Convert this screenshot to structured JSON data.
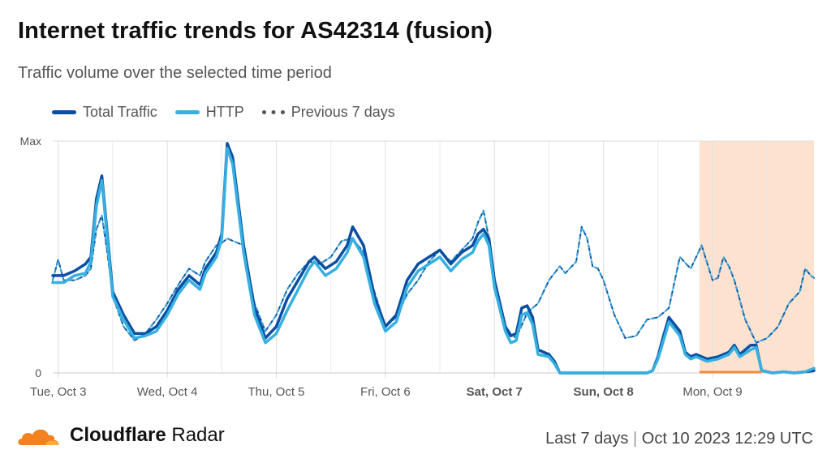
{
  "title": "Internet traffic trends for AS42314 (fusion)",
  "subtitle": "Traffic volume over the selected time period",
  "legend": {
    "total": "Total Traffic",
    "http": "HTTP",
    "previous": "Previous 7 days"
  },
  "colors": {
    "total": "#0b4ea2",
    "http": "#36b0e0",
    "previous": "#555555",
    "highlight": "#fde3cf",
    "highlight_line": "#f08a3c"
  },
  "brand": {
    "bold": "Cloudflare",
    "regular": "Radar",
    "icon": "cloud-icon"
  },
  "footer": {
    "period": "Last 7 days",
    "timestamp": "Oct 10 2023 12:29 UTC"
  },
  "chart_data": {
    "type": "line",
    "title": "Internet traffic trends for AS42314 (fusion)",
    "x_tick_labels": [
      "Tue, Oct 3",
      "Wed, Oct 4",
      "Thu, Oct 5",
      "Fri, Oct 6",
      "Sat, Oct 7",
      "Sun, Oct 8",
      "Mon, Oct 9"
    ],
    "bold_ticks": [
      "Sat, Oct 7",
      "Sun, Oct 8"
    ],
    "y_tick_labels": [
      "0",
      "Max"
    ],
    "ylim": [
      0,
      1
    ],
    "x_unit": "days since Tue, Oct 3 00:00 UTC",
    "xlim": [
      -0.05,
      6.93
    ],
    "highlight_range": [
      5.88,
      6.93
    ],
    "grid": true,
    "legend_position": "top-left",
    "series": [
      {
        "name": "Total Traffic",
        "style": "solid",
        "points": [
          [
            -0.05,
            0.42
          ],
          [
            0.05,
            0.42
          ],
          [
            0.15,
            0.44
          ],
          [
            0.25,
            0.47
          ],
          [
            0.3,
            0.5
          ],
          [
            0.35,
            0.75
          ],
          [
            0.4,
            0.85
          ],
          [
            0.45,
            0.6
          ],
          [
            0.5,
            0.35
          ],
          [
            0.6,
            0.25
          ],
          [
            0.7,
            0.17
          ],
          [
            0.8,
            0.17
          ],
          [
            0.9,
            0.2
          ],
          [
            1.0,
            0.27
          ],
          [
            1.1,
            0.36
          ],
          [
            1.2,
            0.42
          ],
          [
            1.3,
            0.38
          ],
          [
            1.35,
            0.45
          ],
          [
            1.45,
            0.52
          ],
          [
            1.5,
            0.6
          ],
          [
            1.55,
            0.99
          ],
          [
            1.6,
            0.93
          ],
          [
            1.7,
            0.55
          ],
          [
            1.8,
            0.28
          ],
          [
            1.9,
            0.15
          ],
          [
            2.0,
            0.2
          ],
          [
            2.1,
            0.32
          ],
          [
            2.2,
            0.4
          ],
          [
            2.3,
            0.48
          ],
          [
            2.35,
            0.5
          ],
          [
            2.45,
            0.45
          ],
          [
            2.55,
            0.48
          ],
          [
            2.65,
            0.55
          ],
          [
            2.7,
            0.63
          ],
          [
            2.8,
            0.55
          ],
          [
            2.9,
            0.33
          ],
          [
            3.0,
            0.2
          ],
          [
            3.1,
            0.25
          ],
          [
            3.2,
            0.4
          ],
          [
            3.3,
            0.47
          ],
          [
            3.4,
            0.5
          ],
          [
            3.5,
            0.53
          ],
          [
            3.6,
            0.47
          ],
          [
            3.7,
            0.52
          ],
          [
            3.8,
            0.55
          ],
          [
            3.85,
            0.6
          ],
          [
            3.9,
            0.62
          ],
          [
            3.95,
            0.58
          ],
          [
            4.0,
            0.4
          ],
          [
            4.1,
            0.2
          ],
          [
            4.15,
            0.16
          ],
          [
            4.2,
            0.17
          ],
          [
            4.25,
            0.28
          ],
          [
            4.3,
            0.29
          ],
          [
            4.35,
            0.24
          ],
          [
            4.4,
            0.1
          ],
          [
            4.5,
            0.08
          ],
          [
            4.55,
            0.05
          ],
          [
            4.6,
            0.0
          ],
          [
            4.8,
            0.0
          ],
          [
            5.0,
            0.0
          ],
          [
            5.2,
            0.0
          ],
          [
            5.4,
            0.0
          ],
          [
            5.45,
            0.01
          ],
          [
            5.5,
            0.07
          ],
          [
            5.55,
            0.16
          ],
          [
            5.6,
            0.24
          ],
          [
            5.7,
            0.18
          ],
          [
            5.75,
            0.09
          ],
          [
            5.8,
            0.07
          ],
          [
            5.85,
            0.08
          ],
          [
            5.95,
            0.06
          ],
          [
            6.05,
            0.07
          ],
          [
            6.15,
            0.09
          ],
          [
            6.2,
            0.12
          ],
          [
            6.25,
            0.08
          ],
          [
            6.35,
            0.12
          ],
          [
            6.4,
            0.12
          ],
          [
            6.45,
            0.01
          ],
          [
            6.55,
            0.0
          ],
          [
            6.65,
            0.005
          ],
          [
            6.75,
            0.0
          ],
          [
            6.85,
            0.005
          ],
          [
            6.93,
            0.01
          ]
        ]
      },
      {
        "name": "HTTP",
        "style": "solid",
        "points": [
          [
            -0.05,
            0.39
          ],
          [
            0.05,
            0.39
          ],
          [
            0.15,
            0.42
          ],
          [
            0.25,
            0.43
          ],
          [
            0.3,
            0.48
          ],
          [
            0.35,
            0.72
          ],
          [
            0.4,
            0.83
          ],
          [
            0.45,
            0.58
          ],
          [
            0.5,
            0.33
          ],
          [
            0.6,
            0.23
          ],
          [
            0.7,
            0.15
          ],
          [
            0.8,
            0.16
          ],
          [
            0.9,
            0.18
          ],
          [
            1.0,
            0.25
          ],
          [
            1.1,
            0.34
          ],
          [
            1.2,
            0.4
          ],
          [
            1.3,
            0.36
          ],
          [
            1.35,
            0.43
          ],
          [
            1.45,
            0.5
          ],
          [
            1.5,
            0.58
          ],
          [
            1.55,
            0.97
          ],
          [
            1.6,
            0.9
          ],
          [
            1.7,
            0.52
          ],
          [
            1.8,
            0.25
          ],
          [
            1.9,
            0.13
          ],
          [
            2.0,
            0.17
          ],
          [
            2.1,
            0.27
          ],
          [
            2.2,
            0.36
          ],
          [
            2.3,
            0.45
          ],
          [
            2.35,
            0.48
          ],
          [
            2.45,
            0.42
          ],
          [
            2.55,
            0.45
          ],
          [
            2.65,
            0.52
          ],
          [
            2.7,
            0.58
          ],
          [
            2.8,
            0.5
          ],
          [
            2.9,
            0.3
          ],
          [
            3.0,
            0.18
          ],
          [
            3.1,
            0.22
          ],
          [
            3.2,
            0.37
          ],
          [
            3.3,
            0.44
          ],
          [
            3.4,
            0.47
          ],
          [
            3.5,
            0.5
          ],
          [
            3.6,
            0.44
          ],
          [
            3.7,
            0.49
          ],
          [
            3.8,
            0.52
          ],
          [
            3.85,
            0.57
          ],
          [
            3.9,
            0.6
          ],
          [
            3.95,
            0.55
          ],
          [
            4.0,
            0.37
          ],
          [
            4.1,
            0.18
          ],
          [
            4.15,
            0.13
          ],
          [
            4.2,
            0.14
          ],
          [
            4.25,
            0.25
          ],
          [
            4.3,
            0.26
          ],
          [
            4.35,
            0.21
          ],
          [
            4.4,
            0.08
          ],
          [
            4.5,
            0.07
          ],
          [
            4.55,
            0.04
          ],
          [
            4.6,
            0.0
          ],
          [
            4.8,
            0.0
          ],
          [
            5.0,
            0.0
          ],
          [
            5.2,
            0.0
          ],
          [
            5.4,
            0.0
          ],
          [
            5.45,
            0.01
          ],
          [
            5.5,
            0.06
          ],
          [
            5.55,
            0.14
          ],
          [
            5.6,
            0.22
          ],
          [
            5.7,
            0.16
          ],
          [
            5.75,
            0.08
          ],
          [
            5.8,
            0.06
          ],
          [
            5.85,
            0.07
          ],
          [
            5.95,
            0.05
          ],
          [
            6.05,
            0.06
          ],
          [
            6.15,
            0.08
          ],
          [
            6.2,
            0.11
          ],
          [
            6.25,
            0.07
          ],
          [
            6.35,
            0.1
          ],
          [
            6.4,
            0.11
          ],
          [
            6.45,
            0.01
          ],
          [
            6.55,
            0.0
          ],
          [
            6.65,
            0.005
          ],
          [
            6.75,
            0.0
          ],
          [
            6.85,
            0.005
          ],
          [
            6.93,
            0.02
          ]
        ]
      },
      {
        "name": "Previous 7 days",
        "style": "dashed",
        "points": [
          [
            -0.05,
            0.4
          ],
          [
            0.0,
            0.49
          ],
          [
            0.05,
            0.4
          ],
          [
            0.15,
            0.4
          ],
          [
            0.25,
            0.42
          ],
          [
            0.3,
            0.45
          ],
          [
            0.35,
            0.62
          ],
          [
            0.4,
            0.68
          ],
          [
            0.45,
            0.52
          ],
          [
            0.5,
            0.33
          ],
          [
            0.6,
            0.2
          ],
          [
            0.7,
            0.14
          ],
          [
            0.8,
            0.17
          ],
          [
            0.9,
            0.23
          ],
          [
            1.0,
            0.3
          ],
          [
            1.1,
            0.38
          ],
          [
            1.2,
            0.45
          ],
          [
            1.3,
            0.42
          ],
          [
            1.35,
            0.48
          ],
          [
            1.45,
            0.55
          ],
          [
            1.5,
            0.56
          ],
          [
            1.55,
            0.58
          ],
          [
            1.6,
            0.57
          ],
          [
            1.7,
            0.55
          ],
          [
            1.8,
            0.3
          ],
          [
            1.9,
            0.18
          ],
          [
            2.0,
            0.25
          ],
          [
            2.1,
            0.36
          ],
          [
            2.2,
            0.43
          ],
          [
            2.3,
            0.48
          ],
          [
            2.4,
            0.47
          ],
          [
            2.5,
            0.5
          ],
          [
            2.6,
            0.57
          ],
          [
            2.7,
            0.58
          ],
          [
            2.8,
            0.52
          ],
          [
            2.9,
            0.35
          ],
          [
            3.0,
            0.2
          ],
          [
            3.1,
            0.24
          ],
          [
            3.2,
            0.34
          ],
          [
            3.3,
            0.4
          ],
          [
            3.4,
            0.48
          ],
          [
            3.5,
            0.53
          ],
          [
            3.6,
            0.48
          ],
          [
            3.7,
            0.53
          ],
          [
            3.8,
            0.58
          ],
          [
            3.85,
            0.65
          ],
          [
            3.9,
            0.7
          ],
          [
            3.95,
            0.58
          ],
          [
            4.0,
            0.37
          ],
          [
            4.1,
            0.2
          ],
          [
            4.15,
            0.17
          ],
          [
            4.2,
            0.15
          ],
          [
            4.3,
            0.26
          ],
          [
            4.4,
            0.3
          ],
          [
            4.5,
            0.4
          ],
          [
            4.6,
            0.46
          ],
          [
            4.65,
            0.43
          ],
          [
            4.75,
            0.48
          ],
          [
            4.8,
            0.63
          ],
          [
            4.85,
            0.58
          ],
          [
            4.9,
            0.46
          ],
          [
            4.95,
            0.45
          ],
          [
            5.0,
            0.4
          ],
          [
            5.1,
            0.25
          ],
          [
            5.2,
            0.15
          ],
          [
            5.3,
            0.16
          ],
          [
            5.4,
            0.23
          ],
          [
            5.5,
            0.24
          ],
          [
            5.6,
            0.28
          ],
          [
            5.7,
            0.5
          ],
          [
            5.8,
            0.45
          ],
          [
            5.9,
            0.55
          ],
          [
            6.0,
            0.4
          ],
          [
            6.05,
            0.41
          ],
          [
            6.1,
            0.5
          ],
          [
            6.15,
            0.46
          ],
          [
            6.2,
            0.4
          ],
          [
            6.3,
            0.23
          ],
          [
            6.4,
            0.13
          ],
          [
            6.5,
            0.15
          ],
          [
            6.6,
            0.2
          ],
          [
            6.7,
            0.3
          ],
          [
            6.8,
            0.35
          ],
          [
            6.85,
            0.45
          ],
          [
            6.9,
            0.42
          ],
          [
            6.93,
            0.41
          ]
        ]
      }
    ]
  }
}
